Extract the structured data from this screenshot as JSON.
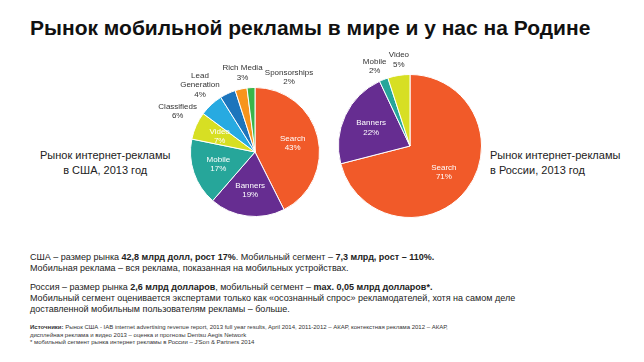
{
  "title": "Рынок мобильной рекламы в мире и у нас на Родине",
  "chart_data": [
    {
      "type": "pie",
      "title": "Рынок интернет-рекламы в США, 2013 год",
      "categories": [
        "Search",
        "Banners",
        "Mobile",
        "Video",
        "Classifieds",
        "Lead Generation",
        "Rich Media",
        "Sponsorships"
      ],
      "values": [
        43,
        19,
        17,
        7,
        6,
        4,
        3,
        2
      ],
      "value_labels": [
        "43%",
        "19%",
        "17%",
        "7%",
        "6%",
        "4%",
        "3%",
        "2%"
      ],
      "colors": [
        "#f15a29",
        "#662d91",
        "#26a69a",
        "#d7df23",
        "#27aae1",
        "#1c75bc",
        "#f7941d",
        "#39b54a"
      ],
      "data_labels": true
    },
    {
      "type": "pie",
      "title": "Рынок интернет-рекламы в России, 2013 год",
      "categories": [
        "Search",
        "Banners",
        "Mobile",
        "Video"
      ],
      "values": [
        71,
        22,
        2,
        5
      ],
      "value_labels": [
        "71%",
        "22%",
        "2%",
        "5%"
      ],
      "colors": [
        "#f15a29",
        "#662d91",
        "#26a69a",
        "#d7df23"
      ],
      "data_labels": true
    }
  ],
  "notes": [
    [
      [
        {
          "text": "США – размер рынка "
        },
        {
          "text": "42,8 млрд долл, рост 17%",
          "bold": true
        },
        {
          "text": ". Мобильный сегмент – "
        },
        {
          "text": "7,3 млрд, рост – 110%.",
          "bold": true
        }
      ],
      [
        {
          "text": "Мобильная реклама – вся реклама, показанная на мобильных устройствах."
        }
      ]
    ],
    [
      [
        {
          "text": "Россия – размер рынка "
        },
        {
          "text": "2,6 млрд долларов",
          "bold": true
        },
        {
          "text": ", мобильный сегмент – "
        },
        {
          "text": "max. 0,05 млрд долларов*.",
          "bold": true
        }
      ],
      [
        {
          "text": "Мобильный сегмент оценивается экспертами только как «осознанный спрос» рекламодателей, хотя на самом деле доставленной мобильным пользователям рекламы – больше."
        }
      ]
    ]
  ],
  "sources": [
    [
      {
        "text": "Источники:",
        "bold": true
      },
      {
        "text": " Рынок США - IAB internet advertising revenue report, 2013 full year results, April 2014, 2011-2012 – АКАР, контекстная реклама 2012 – АКАР,"
      }
    ],
    [
      {
        "text": "дисплейная реклама и видео 2013 – оценка и прогнозы Dentsu Aegis Network"
      }
    ],
    [
      {
        "text": "* мобильный сегмент рынка интернет рекламы в России – J'Son & Partners 2014"
      }
    ]
  ]
}
